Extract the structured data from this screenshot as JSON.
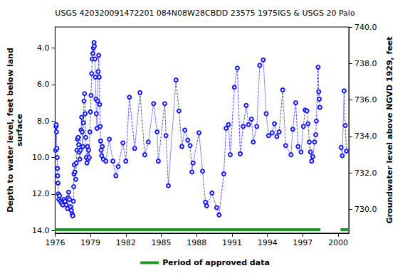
{
  "chart_data": {
    "type": "line",
    "title": "USGS 420320091472201 084N08W28CBDD 23575 1975IGS & USGS 20 Palo",
    "ylabel": "Depth to water level, feet below land\nsurface",
    "y2label": "Groundwater level above NGVD 1929, feet",
    "x": [
      1976.05,
      1976.08,
      1976.1,
      1976.12,
      1976.15,
      1976.18,
      1976.2,
      1976.22,
      1976.25,
      1976.28,
      1976.32,
      1976.38,
      1976.45,
      1976.55,
      1976.65,
      1976.75,
      1976.85,
      1976.95,
      1977.05,
      1977.1,
      1977.15,
      1977.22,
      1977.3,
      1977.38,
      1977.45,
      1977.5,
      1977.55,
      1977.58,
      1977.6,
      1977.63,
      1977.68,
      1977.75,
      1977.8,
      1977.85,
      1977.9,
      1977.95,
      1978.0,
      1978.05,
      1978.1,
      1978.15,
      1978.2,
      1978.25,
      1978.3,
      1978.35,
      1978.4,
      1978.45,
      1978.5,
      1978.55,
      1978.6,
      1978.65,
      1978.7,
      1978.75,
      1978.8,
      1978.85,
      1978.9,
      1978.95,
      1979.0,
      1979.05,
      1979.1,
      1979.15,
      1979.2,
      1979.25,
      1979.3,
      1979.33,
      1979.38,
      1979.42,
      1979.46,
      1979.5,
      1979.55,
      1979.6,
      1979.65,
      1979.7,
      1979.74,
      1979.78,
      1979.82,
      1979.86,
      1979.9,
      1979.95,
      1980.0,
      1980.1,
      1980.3,
      1980.6,
      1980.9,
      1981.15,
      1981.35,
      1981.75,
      1982.0,
      1982.3,
      1982.75,
      1983.2,
      1983.6,
      1983.9,
      1984.35,
      1984.65,
      1984.75,
      1985.3,
      1985.4,
      1985.6,
      1986.25,
      1986.5,
      1986.75,
      1987.0,
      1987.25,
      1987.45,
      1987.6,
      1987.7,
      1988.2,
      1988.5,
      1988.75,
      1988.85,
      1989.3,
      1989.7,
      1989.9,
      1990.3,
      1990.5,
      1990.7,
      1990.85,
      1991.2,
      1991.45,
      1991.7,
      1991.95,
      1992.2,
      1992.4,
      1992.65,
      1992.8,
      1993.1,
      1993.35,
      1993.65,
      1993.9,
      1994.1,
      1994.4,
      1994.6,
      1994.8,
      1995.0,
      1995.3,
      1995.55,
      1996.0,
      1996.15,
      1996.4,
      1996.6,
      1996.85,
      1997.05,
      1997.2,
      1997.35,
      1997.45,
      1997.55,
      1997.65,
      1997.75,
      1997.85,
      1998.0,
      1998.1,
      1998.15,
      1998.3,
      1998.35,
      1998.4,
      1998.45,
      1999.3,
      2000.25,
      2000.35,
      2000.5,
      2000.6,
      2000.7
    ],
    "series": [
      {
        "color": "#1a1aff",
        "marker": "circle",
        "line_style": "dotted",
        "values": [
          9.6,
          8.3,
          8.2,
          8.6,
          9.5,
          10.0,
          10.6,
          11.0,
          11.4,
          12.0,
          12.3,
          12.1,
          12.4,
          12.5,
          12.6,
          12.3,
          12.4,
          12.6,
          12.8,
          12.2,
          11.9,
          12.3,
          12.7,
          12.9,
          13.1,
          13.2,
          12.4,
          11.6,
          10.9,
          10.4,
          10.8,
          11.2,
          10.3,
          9.6,
          9.0,
          8.9,
          9.3,
          9.7,
          10.1,
          9.6,
          8.5,
          7.8,
          8.6,
          9.4,
          8.1,
          6.9,
          6.5,
          7.6,
          8.9,
          10.0,
          10.3,
          9.4,
          10.1,
          9.6,
          10.0,
          8.6,
          7.5,
          6.6,
          5.4,
          4.6,
          4.3,
          4.0,
          3.7,
          3.9,
          4.6,
          5.6,
          6.8,
          7.6,
          8.4,
          6.9,
          5.3,
          4.4,
          5.6,
          7.1,
          8.3,
          9.1,
          9.6,
          9.9,
          9.4,
          10.1,
          10.2,
          9.0,
          10.2,
          11.0,
          10.5,
          9.2,
          10.2,
          6.7,
          9.5,
          6.45,
          9.85,
          9.15,
          7.05,
          8.6,
          10.2,
          7.05,
          8.8,
          11.55,
          5.75,
          7.45,
          9.4,
          8.5,
          9.05,
          9.35,
          10.8,
          10.3,
          8.65,
          10.75,
          12.45,
          12.65,
          11.95,
          12.75,
          13.15,
          10.9,
          8.4,
          8.2,
          9.85,
          6.15,
          5.1,
          9.8,
          8.3,
          7.15,
          8.2,
          7.9,
          9.15,
          8.3,
          4.95,
          4.65,
          7.6,
          8.8,
          8.65,
          8.15,
          8.85,
          8.6,
          6.3,
          9.35,
          9.85,
          8.45,
          7.0,
          9.4,
          9.7,
          8.3,
          7.4,
          7.45,
          8.15,
          9.15,
          9.7,
          10.2,
          9.95,
          9.15,
          8.75,
          8.0,
          5.05,
          6.4,
          6.8,
          7.25,
          null,
          9.45,
          9.9,
          6.35,
          8.25,
          9.65
        ]
      }
    ],
    "xlim": [
      1976,
      2000.9
    ],
    "xticks": [
      1976,
      1979,
      1982,
      1985,
      1988,
      1991,
      1994,
      1997,
      2000
    ],
    "ylim": [
      2.85,
      14.15
    ],
    "yticks": [
      {
        "value": 4,
        "label": "4.0"
      },
      {
        "value": 6,
        "label": "6.0"
      },
      {
        "value": 8,
        "label": "8.0"
      },
      {
        "value": 10,
        "label": "10.0"
      },
      {
        "value": 12,
        "label": "12.0"
      },
      {
        "value": 14,
        "label": "14.0"
      }
    ],
    "y2lim": [
      740.0,
      728.7
    ],
    "y2ticks": [
      {
        "value": 730,
        "label": "730.0"
      },
      {
        "value": 732,
        "label": "732.0"
      },
      {
        "value": 734,
        "label": "734.0"
      },
      {
        "value": 736,
        "label": "736.0"
      },
      {
        "value": 738,
        "label": "738.0"
      },
      {
        "value": 740,
        "label": "740.0"
      }
    ],
    "grid": false,
    "legend": "bottom",
    "approved_periods": {
      "name": "Period of approved data",
      "color": "#1e9c1e",
      "ranges": [
        [
          1976,
          1998.5
        ],
        [
          2000.2,
          2000.9
        ]
      ]
    }
  }
}
